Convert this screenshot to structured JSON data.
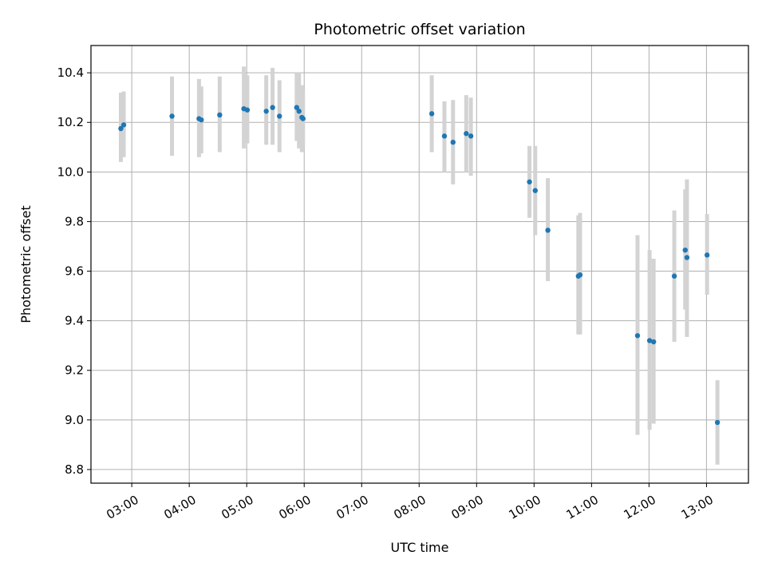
{
  "chart_data": {
    "type": "scatter",
    "title": "Photometric offset variation",
    "xlabel": "UTC time",
    "ylabel": "Photometric offset",
    "grid": true,
    "xlim_hours": [
      2.29,
      13.73
    ],
    "ylim": [
      8.745,
      10.51
    ],
    "xticks": [
      {
        "hour": 3,
        "label": "03:00"
      },
      {
        "hour": 4,
        "label": "04:00"
      },
      {
        "hour": 5,
        "label": "05:00"
      },
      {
        "hour": 6,
        "label": "06:00"
      },
      {
        "hour": 7,
        "label": "07:00"
      },
      {
        "hour": 8,
        "label": "08:00"
      },
      {
        "hour": 9,
        "label": "09:00"
      },
      {
        "hour": 10,
        "label": "10:00"
      },
      {
        "hour": 11,
        "label": "11:00"
      },
      {
        "hour": 12,
        "label": "12:00"
      },
      {
        "hour": 13,
        "label": "13:00"
      }
    ],
    "yticks": [
      {
        "value": 8.8,
        "label": "8.8"
      },
      {
        "value": 9.0,
        "label": "9.0"
      },
      {
        "value": 9.2,
        "label": "9.2"
      },
      {
        "value": 9.4,
        "label": "9.4"
      },
      {
        "value": 9.6,
        "label": "9.6"
      },
      {
        "value": 9.8,
        "label": "9.8"
      },
      {
        "value": 10.0,
        "label": "10.0"
      },
      {
        "value": 10.2,
        "label": "10.2"
      },
      {
        "value": 10.4,
        "label": "10.4"
      }
    ],
    "colors": {
      "point": "#1f77b4",
      "errorbar": "#d3d3d3",
      "grid": "#b0b0b0"
    },
    "points": [
      {
        "t": 2.81,
        "y": 10.175,
        "lo": 10.04,
        "hi": 10.32
      },
      {
        "t": 2.86,
        "y": 10.19,
        "lo": 10.06,
        "hi": 10.325
      },
      {
        "t": 3.7,
        "y": 10.225,
        "lo": 10.065,
        "hi": 10.385
      },
      {
        "t": 4.17,
        "y": 10.215,
        "lo": 10.06,
        "hi": 10.375
      },
      {
        "t": 4.21,
        "y": 10.21,
        "lo": 10.075,
        "hi": 10.345
      },
      {
        "t": 4.53,
        "y": 10.23,
        "lo": 10.08,
        "hi": 10.385
      },
      {
        "t": 4.95,
        "y": 10.255,
        "lo": 10.095,
        "hi": 10.425
      },
      {
        "t": 5.01,
        "y": 10.25,
        "lo": 10.115,
        "hi": 10.39
      },
      {
        "t": 5.34,
        "y": 10.245,
        "lo": 10.11,
        "hi": 10.39
      },
      {
        "t": 5.45,
        "y": 10.26,
        "lo": 10.11,
        "hi": 10.42
      },
      {
        "t": 5.57,
        "y": 10.225,
        "lo": 10.08,
        "hi": 10.37
      },
      {
        "t": 5.87,
        "y": 10.26,
        "lo": 10.125,
        "hi": 10.4
      },
      {
        "t": 5.91,
        "y": 10.245,
        "lo": 10.095,
        "hi": 10.4
      },
      {
        "t": 5.96,
        "y": 10.22,
        "lo": 10.08,
        "hi": 10.35
      },
      {
        "t": 5.98,
        "y": 10.215,
        "lo": 10.1,
        "hi": 10.33
      },
      {
        "t": 8.22,
        "y": 10.235,
        "lo": 10.08,
        "hi": 10.39
      },
      {
        "t": 8.44,
        "y": 10.145,
        "lo": 10.0,
        "hi": 10.285
      },
      {
        "t": 8.59,
        "y": 10.12,
        "lo": 9.95,
        "hi": 10.29
      },
      {
        "t": 8.82,
        "y": 10.155,
        "lo": 10.0,
        "hi": 10.31
      },
      {
        "t": 8.9,
        "y": 10.145,
        "lo": 9.985,
        "hi": 10.3
      },
      {
        "t": 9.92,
        "y": 9.96,
        "lo": 9.815,
        "hi": 10.105
      },
      {
        "t": 10.02,
        "y": 9.925,
        "lo": 9.745,
        "hi": 10.105
      },
      {
        "t": 10.24,
        "y": 9.765,
        "lo": 9.56,
        "hi": 9.975
      },
      {
        "t": 10.77,
        "y": 9.58,
        "lo": 9.345,
        "hi": 9.825
      },
      {
        "t": 10.8,
        "y": 9.585,
        "lo": 9.345,
        "hi": 9.835
      },
      {
        "t": 11.8,
        "y": 9.34,
        "lo": 8.94,
        "hi": 9.745
      },
      {
        "t": 12.01,
        "y": 9.32,
        "lo": 8.96,
        "hi": 9.685
      },
      {
        "t": 12.08,
        "y": 9.315,
        "lo": 8.985,
        "hi": 9.65
      },
      {
        "t": 12.44,
        "y": 9.58,
        "lo": 9.315,
        "hi": 9.845
      },
      {
        "t": 12.63,
        "y": 9.685,
        "lo": 9.445,
        "hi": 9.93
      },
      {
        "t": 12.66,
        "y": 9.655,
        "lo": 9.335,
        "hi": 9.97
      },
      {
        "t": 13.01,
        "y": 9.665,
        "lo": 9.505,
        "hi": 9.83
      },
      {
        "t": 13.19,
        "y": 8.99,
        "lo": 8.82,
        "hi": 9.16
      }
    ]
  }
}
